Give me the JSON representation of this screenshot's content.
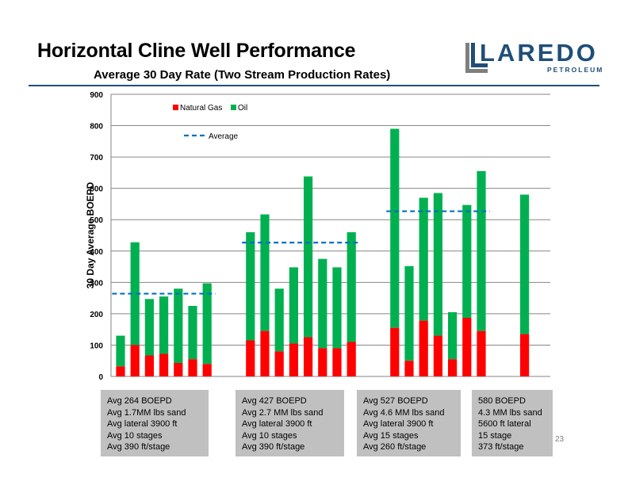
{
  "slide": {
    "title": "Horizontal Cline Well Performance",
    "subtitle": "Average 30 Day Rate (Two Stream Production Rates)",
    "page_number": "23"
  },
  "logo": {
    "word": "LAREDO",
    "sub": "PETROLEUM",
    "color": "#1f4e79"
  },
  "summary_boxes": [
    [
      "Avg 264 BOEPD",
      "Avg 1.7MM lbs sand",
      "Avg lateral 3900 ft",
      "Avg 10 stages",
      "Avg 390 ft/stage"
    ],
    [
      "Avg 427 BOEPD",
      "Avg 2.7 MM lbs sand",
      "Avg lateral 3900 ft",
      "Avg 10 stages",
      "Avg 390 ft/stage"
    ],
    [
      "Avg 527 BOEPD",
      "Avg 4.6 MM lbs sand",
      "Avg lateral 3900 ft",
      "Avg 15 stages",
      "Avg 260 ft/stage"
    ],
    [
      "580 BOEPD",
      "4.3 MM lbs sand",
      "5600 ft lateral",
      "15 stage",
      "373 ft/stage"
    ]
  ],
  "chart_data": {
    "type": "bar",
    "stacked": true,
    "ylabel": "30 Day Average BOEPD",
    "ylim": [
      0,
      900
    ],
    "yticks": [
      0,
      100,
      200,
      300,
      400,
      500,
      600,
      700,
      800,
      900
    ],
    "grid": true,
    "legend": [
      {
        "name": "Natural Gas",
        "color": "#ff0000"
      },
      {
        "name": "Oil",
        "color": "#00b050"
      }
    ],
    "average_legend": {
      "label": "Average",
      "color": "#0070c0"
    },
    "groups": [
      {
        "natural_gas": [
          32,
          100,
          67,
          72,
          43,
          55,
          40
        ],
        "total": [
          130,
          428,
          247,
          255,
          280,
          225,
          297
        ],
        "average": 264
      },
      {
        "natural_gas": [
          115,
          145,
          80,
          105,
          125,
          90,
          90,
          110
        ],
        "total": [
          460,
          517,
          280,
          348,
          638,
          375,
          348,
          460
        ],
        "average": 427
      },
      {
        "natural_gas": [
          155,
          50,
          178,
          130,
          55,
          187,
          145
        ],
        "total": [
          790,
          352,
          570,
          585,
          205,
          547,
          655
        ],
        "average": 527
      },
      {
        "natural_gas": [
          135
        ],
        "total": [
          580
        ],
        "average": null
      }
    ]
  }
}
